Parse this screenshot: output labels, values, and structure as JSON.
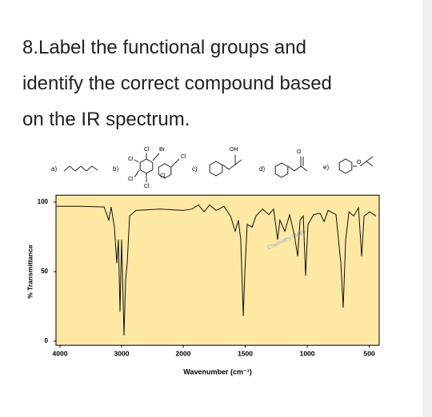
{
  "question": {
    "lines": [
      "8.Label the functional groups and",
      "identify the correct compound based",
      "on the IR spectrum."
    ]
  },
  "options": [
    {
      "label": "a)"
    },
    {
      "label": "b)",
      "atoms": [
        "Cl",
        "Br",
        "Cl",
        "Cl",
        "Cl",
        "Cl",
        "Cl"
      ]
    },
    {
      "label": "c)",
      "atoms": [
        "OH"
      ]
    },
    {
      "label": "d)",
      "atoms": [
        "O"
      ]
    },
    {
      "label": "e)",
      "atoms": [
        "O"
      ]
    }
  ],
  "chart_data": {
    "type": "line",
    "xlabel": "Wavenumber (cm⁻¹)",
    "ylabel": "% Transmittance",
    "watermark": "Chemistry Steps",
    "x": [
      4065,
      3675,
      3285,
      3208,
      3169,
      3117,
      3078,
      3052,
      3026,
      3000,
      2961,
      2935,
      2909,
      2870,
      2766,
      2376,
      2000,
      1929,
      1877,
      1832,
      1787,
      1735,
      1671,
      1619,
      1581,
      1555,
      1536,
      1516,
      1503,
      1484,
      1445,
      1413,
      1361,
      1310,
      1271,
      1239,
      1220,
      1181,
      1142,
      1103,
      1077,
      1058,
      1032,
      1013,
      994,
      948,
      897,
      864,
      832,
      768,
      729,
      710,
      690,
      664,
      626,
      587,
      561,
      542,
      497,
      445
    ],
    "values": [
      97,
      97,
      96.5,
      87,
      96.5,
      82,
      56,
      73,
      21,
      73,
      4,
      44,
      56,
      90,
      94,
      95,
      94,
      95,
      98,
      93,
      98,
      94,
      97,
      90,
      79,
      87,
      73,
      18,
      50,
      84,
      82,
      90,
      95,
      91,
      95,
      73,
      87,
      79,
      91,
      76,
      61,
      87,
      90,
      47,
      84,
      91,
      92,
      86,
      94,
      91,
      56,
      24,
      73,
      93,
      90,
      96,
      61,
      90,
      93,
      90
    ],
    "color": "#111111",
    "background": "#fde9a3",
    "xlim": [
      4065,
      420
    ],
    "x_scale_break": 2000,
    "ylim": [
      -3,
      105
    ],
    "xticks": [
      4000,
      3000,
      2000,
      1500,
      1000,
      500
    ],
    "yticks": [
      0,
      50,
      100
    ]
  }
}
